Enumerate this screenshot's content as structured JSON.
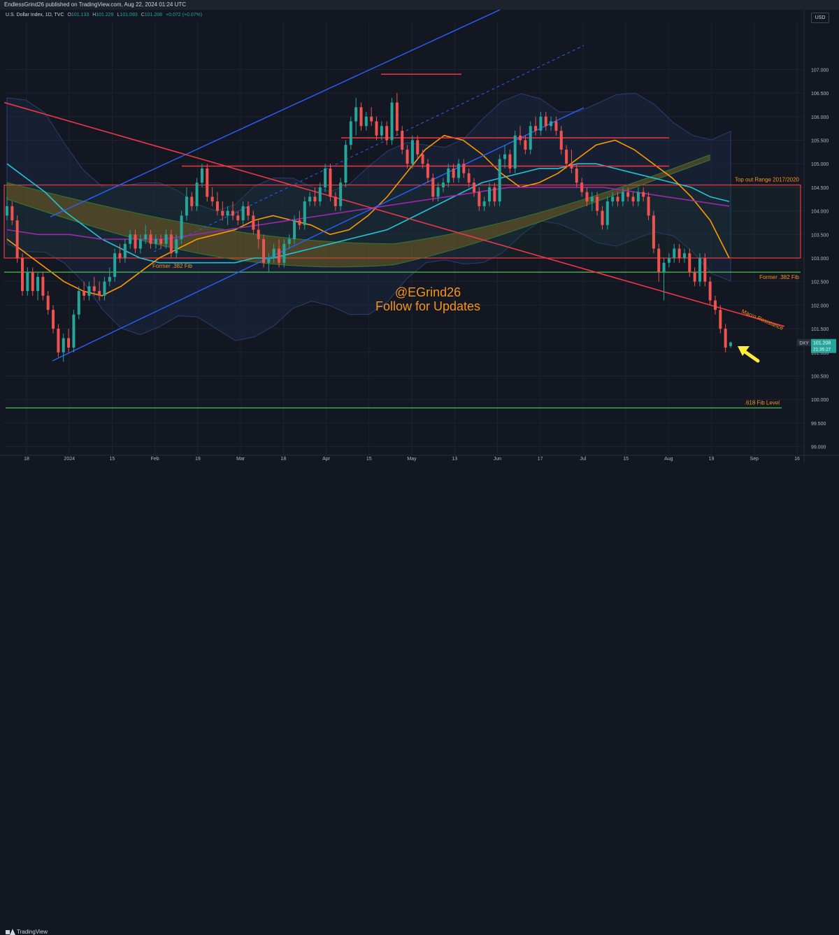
{
  "header": {
    "published": "EndlessGrind26 published on TradingView.com, Aug 22, 2024 01:24 UTC",
    "symbol": "U.S. Dollar Index, 1D, TVC",
    "ohlc": [
      {
        "label": "O",
        "value": "101.133"
      },
      {
        "label": "H",
        "value": "101.229"
      },
      {
        "label": "L",
        "value": "101.093"
      },
      {
        "label": "C",
        "value": "101.208"
      }
    ],
    "change": "+0.072 (+0.07%)",
    "currency_button": "USD"
  },
  "footer": {
    "brand": "TradingView"
  },
  "colors": {
    "background": "#131722",
    "up_candle": "#26a69a",
    "down_candle": "#ef5350",
    "annotation_orange": "#f7931a",
    "resistance_red": "#f23645",
    "support_green": "#4caf50",
    "channel_blue": "#2962ff",
    "ema_cyan": "#22c3d6",
    "ema_orange": "#ff9800",
    "sma_purple": "#9c27b0"
  },
  "chart_data": {
    "type": "candlestick",
    "title": "U.S. Dollar Index, 1D, TVC",
    "ylim": [
      98.83,
      108.0
    ],
    "y_ticks": [
      99.0,
      99.5,
      100.0,
      100.5,
      101.0,
      101.5,
      102.0,
      102.5,
      103.0,
      103.5,
      104.0,
      104.5,
      105.0,
      105.5,
      106.0,
      106.5,
      107.0
    ],
    "x_ticks": [
      "18",
      "2024",
      "15",
      "Feb",
      "19",
      "Mar",
      "18",
      "Apr",
      "15",
      "May",
      "13",
      "Jun",
      "17",
      "Jul",
      "15",
      "Aug",
      "19",
      "Sep",
      "16"
    ],
    "price_label": {
      "symbol": "DXY",
      "value": "101.208",
      "countdown": "21:35:27"
    },
    "candles": [
      [
        103.9,
        104.3,
        103.8,
        104.1
      ],
      [
        104.1,
        104.2,
        103.7,
        103.8
      ],
      [
        103.8,
        103.9,
        102.9,
        103.0
      ],
      [
        103.0,
        103.1,
        102.2,
        102.3
      ],
      [
        102.3,
        102.8,
        102.2,
        102.7
      ],
      [
        102.7,
        102.8,
        102.2,
        102.3
      ],
      [
        102.3,
        102.7,
        102.1,
        102.6
      ],
      [
        102.6,
        102.7,
        102.1,
        102.2
      ],
      [
        102.2,
        102.3,
        101.8,
        101.9
      ],
      [
        101.9,
        102.0,
        101.4,
        101.5
      ],
      [
        101.5,
        101.6,
        100.9,
        101.0
      ],
      [
        101.0,
        101.4,
        100.8,
        101.3
      ],
      [
        101.3,
        101.5,
        101.0,
        101.1
      ],
      [
        101.1,
        101.9,
        101.0,
        101.8
      ],
      [
        101.8,
        102.4,
        101.7,
        102.3
      ],
      [
        102.3,
        102.5,
        102.1,
        102.2
      ],
      [
        102.2,
        102.5,
        102.1,
        102.4
      ],
      [
        102.4,
        102.6,
        102.2,
        102.3
      ],
      [
        102.3,
        102.5,
        102.1,
        102.2
      ],
      [
        102.2,
        102.6,
        102.1,
        102.5
      ],
      [
        102.5,
        102.8,
        102.4,
        102.6
      ],
      [
        102.6,
        103.2,
        102.5,
        103.1
      ],
      [
        103.1,
        103.3,
        102.9,
        103.0
      ],
      [
        103.0,
        103.4,
        102.9,
        103.3
      ],
      [
        103.3,
        103.6,
        103.2,
        103.5
      ],
      [
        103.5,
        103.6,
        103.1,
        103.2
      ],
      [
        103.2,
        103.5,
        103.1,
        103.4
      ],
      [
        103.4,
        103.7,
        103.3,
        103.5
      ],
      [
        103.5,
        103.6,
        103.2,
        103.3
      ],
      [
        103.3,
        103.5,
        103.2,
        103.4
      ],
      [
        103.4,
        103.5,
        103.2,
        103.3
      ],
      [
        103.3,
        103.6,
        103.2,
        103.5
      ],
      [
        103.5,
        103.6,
        103.0,
        103.1
      ],
      [
        103.1,
        103.5,
        103.0,
        103.4
      ],
      [
        103.4,
        104.0,
        103.3,
        103.9
      ],
      [
        103.9,
        104.5,
        103.8,
        104.3
      ],
      [
        104.3,
        104.4,
        104.0,
        104.1
      ],
      [
        104.1,
        104.7,
        104.0,
        104.6
      ],
      [
        104.6,
        105.0,
        104.5,
        104.9
      ],
      [
        104.9,
        105.0,
        104.2,
        104.3
      ],
      [
        104.3,
        104.5,
        104.1,
        104.2
      ],
      [
        104.2,
        104.4,
        103.9,
        104.0
      ],
      [
        104.0,
        104.2,
        103.8,
        103.9
      ],
      [
        103.9,
        104.1,
        103.7,
        104.0
      ],
      [
        104.0,
        104.2,
        103.8,
        103.9
      ],
      [
        103.9,
        104.0,
        103.7,
        103.8
      ],
      [
        103.8,
        104.2,
        103.7,
        104.1
      ],
      [
        104.1,
        104.2,
        103.8,
        103.9
      ],
      [
        103.9,
        104.0,
        103.5,
        103.6
      ],
      [
        103.6,
        103.8,
        103.2,
        103.4
      ],
      [
        103.4,
        103.5,
        102.8,
        102.9
      ],
      [
        102.9,
        103.1,
        102.7,
        103.0
      ],
      [
        103.0,
        103.3,
        102.9,
        103.2
      ],
      [
        103.2,
        103.4,
        102.8,
        102.9
      ],
      [
        102.9,
        103.4,
        102.8,
        103.3
      ],
      [
        103.3,
        103.5,
        103.2,
        103.4
      ],
      [
        103.4,
        103.9,
        103.3,
        103.8
      ],
      [
        103.8,
        104.0,
        103.6,
        103.7
      ],
      [
        103.7,
        104.3,
        103.6,
        104.2
      ],
      [
        104.2,
        104.4,
        104.1,
        104.3
      ],
      [
        104.3,
        104.5,
        104.1,
        104.2
      ],
      [
        104.2,
        104.6,
        104.1,
        104.5
      ],
      [
        104.5,
        105.0,
        104.4,
        104.9
      ],
      [
        104.9,
        105.0,
        104.2,
        104.3
      ],
      [
        104.3,
        104.4,
        104.0,
        104.1
      ],
      [
        104.1,
        104.7,
        104.0,
        104.6
      ],
      [
        104.6,
        105.5,
        104.5,
        105.4
      ],
      [
        105.4,
        106.0,
        105.3,
        105.9
      ],
      [
        105.9,
        106.4,
        105.6,
        106.2
      ],
      [
        106.2,
        106.3,
        105.7,
        105.8
      ],
      [
        105.8,
        106.1,
        105.7,
        106.0
      ],
      [
        106.0,
        106.2,
        105.8,
        105.9
      ],
      [
        105.9,
        106.0,
        105.5,
        105.6
      ],
      [
        105.6,
        105.9,
        105.5,
        105.8
      ],
      [
        105.8,
        105.9,
        105.4,
        105.5
      ],
      [
        105.5,
        106.4,
        105.4,
        106.3
      ],
      [
        106.3,
        106.5,
        105.6,
        105.7
      ],
      [
        105.7,
        105.8,
        105.2,
        105.3
      ],
      [
        105.3,
        105.4,
        104.9,
        105.0
      ],
      [
        105.0,
        105.6,
        104.9,
        105.5
      ],
      [
        105.5,
        105.6,
        105.1,
        105.2
      ],
      [
        105.2,
        105.3,
        104.9,
        105.0
      ],
      [
        105.0,
        105.1,
        104.6,
        104.7
      ],
      [
        104.7,
        104.8,
        104.2,
        104.3
      ],
      [
        104.3,
        104.6,
        104.2,
        104.5
      ],
      [
        104.5,
        104.7,
        104.4,
        104.6
      ],
      [
        104.6,
        105.0,
        104.5,
        104.9
      ],
      [
        104.9,
        105.0,
        104.6,
        104.7
      ],
      [
        104.7,
        105.1,
        104.6,
        105.0
      ],
      [
        105.0,
        105.1,
        104.7,
        104.8
      ],
      [
        104.8,
        104.9,
        104.5,
        104.6
      ],
      [
        104.6,
        104.7,
        104.3,
        104.4
      ],
      [
        104.4,
        104.5,
        104.0,
        104.1
      ],
      [
        104.1,
        104.3,
        104.0,
        104.2
      ],
      [
        104.2,
        104.6,
        104.1,
        104.5
      ],
      [
        104.5,
        104.6,
        104.1,
        104.2
      ],
      [
        104.2,
        105.2,
        104.1,
        105.1
      ],
      [
        105.1,
        105.4,
        104.9,
        105.2
      ],
      [
        105.2,
        105.3,
        104.8,
        104.9
      ],
      [
        104.9,
        105.7,
        104.8,
        105.6
      ],
      [
        105.6,
        105.8,
        105.4,
        105.5
      ],
      [
        105.5,
        105.6,
        105.2,
        105.3
      ],
      [
        105.3,
        105.9,
        105.2,
        105.8
      ],
      [
        105.8,
        106.0,
        105.6,
        105.7
      ],
      [
        105.7,
        106.1,
        105.6,
        106.0
      ],
      [
        106.0,
        106.1,
        105.7,
        105.8
      ],
      [
        105.8,
        106.0,
        105.7,
        105.9
      ],
      [
        105.9,
        106.0,
        105.6,
        105.7
      ],
      [
        105.7,
        105.8,
        105.2,
        105.3
      ],
      [
        105.3,
        105.4,
        104.9,
        105.0
      ],
      [
        105.0,
        105.3,
        104.8,
        104.9
      ],
      [
        104.9,
        105.0,
        104.5,
        104.6
      ],
      [
        104.6,
        104.7,
        104.3,
        104.4
      ],
      [
        104.4,
        104.5,
        104.1,
        104.2
      ],
      [
        104.2,
        104.4,
        104.0,
        104.3
      ],
      [
        104.3,
        104.4,
        103.9,
        104.0
      ],
      [
        104.0,
        104.1,
        103.6,
        103.7
      ],
      [
        103.7,
        104.3,
        103.6,
        104.2
      ],
      [
        104.2,
        104.4,
        104.1,
        104.3
      ],
      [
        104.3,
        104.4,
        104.1,
        104.2
      ],
      [
        104.2,
        104.5,
        104.1,
        104.4
      ],
      [
        104.4,
        104.5,
        104.2,
        104.3
      ],
      [
        104.3,
        104.4,
        104.1,
        104.2
      ],
      [
        104.2,
        104.5,
        104.1,
        104.4
      ],
      [
        104.4,
        104.5,
        104.2,
        104.3
      ],
      [
        104.3,
        104.4,
        103.8,
        103.9
      ],
      [
        103.9,
        104.0,
        103.1,
        103.2
      ],
      [
        103.2,
        103.3,
        102.5,
        102.7
      ],
      [
        102.7,
        103.0,
        102.1,
        102.9
      ],
      [
        102.9,
        103.1,
        102.8,
        103.0
      ],
      [
        103.0,
        103.3,
        102.9,
        103.2
      ],
      [
        103.2,
        103.3,
        102.9,
        103.0
      ],
      [
        103.0,
        103.2,
        102.9,
        103.1
      ],
      [
        103.1,
        103.2,
        102.6,
        102.7
      ],
      [
        102.7,
        102.8,
        102.4,
        102.5
      ],
      [
        102.5,
        103.1,
        102.4,
        103.0
      ],
      [
        103.0,
        103.1,
        102.4,
        102.5
      ],
      [
        102.5,
        102.6,
        102.0,
        102.1
      ],
      [
        102.1,
        102.2,
        101.8,
        101.9
      ],
      [
        101.9,
        102.0,
        101.4,
        101.5
      ],
      [
        101.5,
        101.6,
        101.0,
        101.1
      ],
      [
        101.133,
        101.229,
        101.093,
        101.208
      ]
    ],
    "series": [
      {
        "name": "",
        "color": "#22c3d6",
        "values": [
          105.0,
          104.7,
          104.4,
          104.0,
          103.7,
          103.4,
          103.2,
          103.0,
          102.9,
          102.9,
          102.9,
          102.9,
          102.9,
          103.0,
          103.0,
          103.1,
          103.2,
          103.3,
          103.4,
          103.5,
          103.6,
          103.8,
          104.0,
          104.2,
          104.4,
          104.6,
          104.7,
          104.8,
          104.9,
          104.9,
          105.0,
          105.0,
          104.9,
          104.8,
          104.7,
          104.6,
          104.5,
          104.3,
          104.2
        ]
      },
      {
        "name": "",
        "color": "#ff9800",
        "values": [
          103.4,
          103.1,
          102.8,
          102.5,
          102.3,
          102.2,
          102.4,
          102.7,
          103.0,
          103.2,
          103.4,
          103.5,
          103.6,
          103.8,
          103.9,
          103.8,
          103.7,
          103.5,
          103.6,
          103.9,
          104.3,
          104.8,
          105.3,
          105.6,
          105.5,
          105.2,
          104.8,
          104.5,
          104.6,
          104.8,
          105.1,
          105.4,
          105.5,
          105.3,
          105.0,
          104.7,
          104.3,
          103.8,
          103.0
        ]
      },
      {
        "name": "",
        "color": "#9c27b0",
        "values": [
          103.6,
          103.5,
          103.5,
          103.4,
          103.4,
          103.4,
          103.5,
          103.6,
          103.7,
          103.8,
          103.9,
          104.0,
          104.1,
          104.2,
          104.3,
          104.4,
          104.5,
          104.5,
          104.5,
          104.5,
          104.4,
          104.3,
          104.2,
          104.1
        ]
      }
    ],
    "lines": [
      {
        "label": "Top out Range 2017/2020",
        "low": 103.0,
        "high": 104.55
      },
      {
        "label": "Former .382 Fib",
        "value": 102.7
      },
      {
        "label": "Macro Resistance",
        "from": [
          0,
          106.3
        ],
        "to": [
          150,
          101.5
        ]
      },
      {
        "label": ".618 Fib Level",
        "value": 99.82
      },
      {
        "label": "",
        "value": 104.95
      },
      {
        "label": "",
        "value": 105.55
      },
      {
        "label": "",
        "value": 106.9
      }
    ],
    "watermark_handle": "@EGrind26",
    "watermark_subtitle": "Follow for Updates"
  }
}
